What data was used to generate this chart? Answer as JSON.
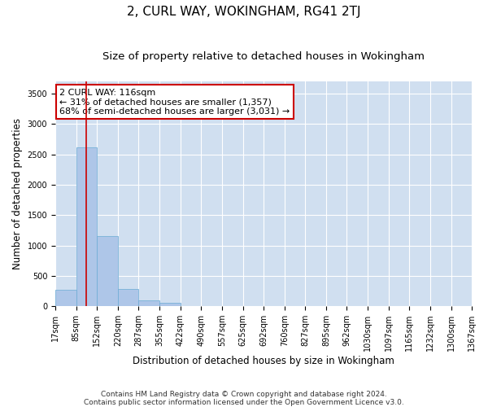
{
  "title": "2, CURL WAY, WOKINGHAM, RG41 2TJ",
  "subtitle": "Size of property relative to detached houses in Wokingham",
  "xlabel": "Distribution of detached houses by size in Wokingham",
  "ylabel": "Number of detached properties",
  "bar_color": "#aec6e8",
  "bar_edge_color": "#6aaad4",
  "background_color": "#ffffff",
  "grid_color": "#d0dff0",
  "annotation_line1": "2 CURL WAY: 116sqm",
  "annotation_line2": "← 31% of detached houses are smaller (1,357)",
  "annotation_line3": "68% of semi-detached houses are larger (3,031) →",
  "annotation_box_color": "#ffffff",
  "annotation_border_color": "#cc0000",
  "property_line_x": 116,
  "property_line_color": "#cc0000",
  "bin_edges": [
    17,
    85,
    152,
    220,
    287,
    355,
    422,
    490,
    557,
    625,
    692,
    760,
    827,
    895,
    962,
    1030,
    1097,
    1165,
    1232,
    1300,
    1367
  ],
  "bar_heights": [
    270,
    2620,
    1150,
    280,
    100,
    50,
    0,
    0,
    0,
    0,
    0,
    0,
    0,
    0,
    0,
    0,
    0,
    0,
    0,
    0
  ],
  "ylim": [
    0,
    3700
  ],
  "yticks": [
    0,
    500,
    1000,
    1500,
    2000,
    2500,
    3000,
    3500
  ],
  "footnote1": "Contains HM Land Registry data © Crown copyright and database right 2024.",
  "footnote2": "Contains public sector information licensed under the Open Government Licence v3.0.",
  "title_fontsize": 11,
  "subtitle_fontsize": 9.5,
  "label_fontsize": 8.5,
  "tick_fontsize": 7,
  "annotation_fontsize": 8,
  "footnote_fontsize": 6.5
}
